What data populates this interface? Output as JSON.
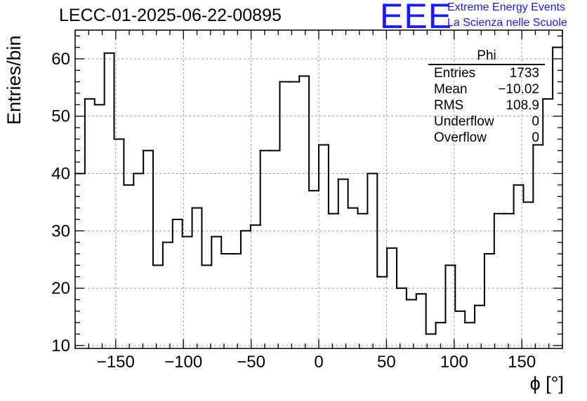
{
  "chart_data": {
    "type": "histogram",
    "title": "LECC-01-2025-06-22-00895",
    "xlabel": "ϕ [°]",
    "ylabel": "Entries/bin",
    "xlim": [
      -180,
      180
    ],
    "ylim": [
      9.5,
      65
    ],
    "bin_width": 7.2,
    "grid": true,
    "x_ticks": [
      -150,
      -100,
      -50,
      0,
      50,
      100,
      150
    ],
    "x_tick_labels": [
      "−150",
      "−100",
      "−50",
      "0",
      "50",
      "100",
      "150"
    ],
    "y_ticks": [
      10,
      20,
      30,
      40,
      50,
      60
    ],
    "y_tick_labels": [
      "10",
      "20",
      "30",
      "40",
      "50",
      "60"
    ],
    "bin_edges_start": -180,
    "counts": [
      40,
      53,
      52,
      61,
      46,
      38,
      40,
      44,
      24,
      28,
      32,
      29,
      34,
      24,
      29,
      26,
      26,
      30,
      31,
      44,
      44,
      56,
      56,
      57,
      37,
      45,
      33,
      39,
      34,
      33,
      40,
      22,
      27,
      20,
      18,
      19,
      12,
      14,
      24,
      16,
      14,
      17,
      26,
      33,
      33,
      38,
      35,
      45,
      53,
      62
    ]
  },
  "stats_box": {
    "title": "Phi",
    "rows": [
      {
        "label": "Entries",
        "value": "1733"
      },
      {
        "label": "Mean",
        "value": "−10.02"
      },
      {
        "label": "RMS",
        "value": "108.9"
      },
      {
        "label": "Underflow",
        "value": "0"
      },
      {
        "label": "Overflow",
        "value": "0"
      }
    ]
  },
  "logo": {
    "mark": "EEE",
    "line1": "Extreme Energy Events",
    "line2": "La Scienza nelle Scuole"
  },
  "colors": {
    "line": "#000000",
    "grid": "#999999",
    "logo": "#1a1aff"
  }
}
